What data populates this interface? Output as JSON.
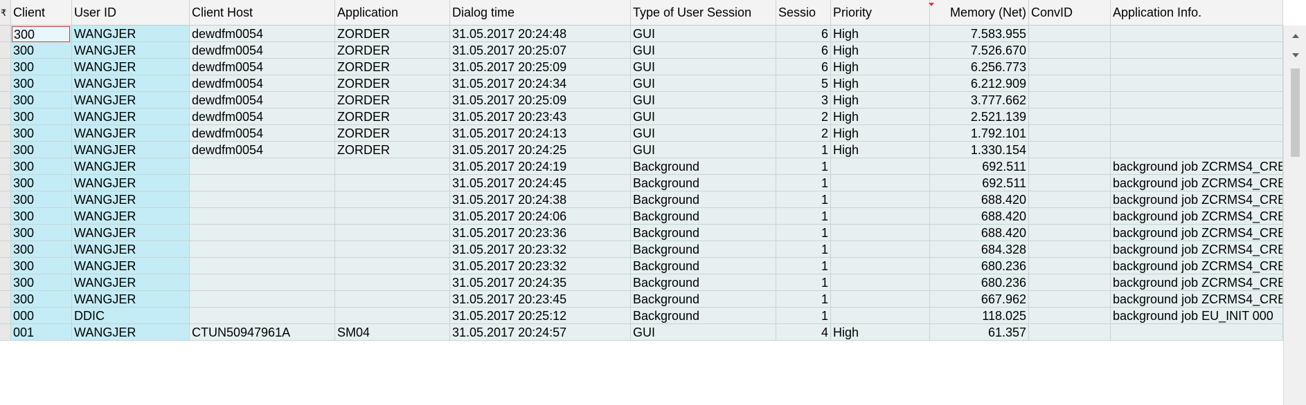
{
  "header": {
    "marker": "₹",
    "columns": [
      "Client",
      "User ID",
      "Client Host",
      "Application",
      "Dialog time",
      "Type of User Session",
      "Sessio",
      "Priority",
      "Memory (Net)",
      "ConvID",
      "Application Info."
    ]
  },
  "rows": [
    [
      "300",
      "WANGJER",
      "dewdfm0054",
      "ZORDER",
      "31.05.2017 20:24:48",
      "GUI",
      "6",
      "High",
      "7.583.955",
      "",
      ""
    ],
    [
      "300",
      "WANGJER",
      "dewdfm0054",
      "ZORDER",
      "31.05.2017 20:25:07",
      "GUI",
      "6",
      "High",
      "7.526.670",
      "",
      ""
    ],
    [
      "300",
      "WANGJER",
      "dewdfm0054",
      "ZORDER",
      "31.05.2017 20:25:09",
      "GUI",
      "6",
      "High",
      "6.256.773",
      "",
      ""
    ],
    [
      "300",
      "WANGJER",
      "dewdfm0054",
      "ZORDER",
      "31.05.2017 20:24:34",
      "GUI",
      "5",
      "High",
      "6.212.909",
      "",
      ""
    ],
    [
      "300",
      "WANGJER",
      "dewdfm0054",
      "ZORDER",
      "31.05.2017 20:25:09",
      "GUI",
      "3",
      "High",
      "3.777.662",
      "",
      ""
    ],
    [
      "300",
      "WANGJER",
      "dewdfm0054",
      "ZORDER",
      "31.05.2017 20:23:43",
      "GUI",
      "2",
      "High",
      "2.521.139",
      "",
      ""
    ],
    [
      "300",
      "WANGJER",
      "dewdfm0054",
      "ZORDER",
      "31.05.2017 20:24:13",
      "GUI",
      "2",
      "High",
      "1.792.101",
      "",
      ""
    ],
    [
      "300",
      "WANGJER",
      "dewdfm0054",
      "ZORDER",
      "31.05.2017 20:24:25",
      "GUI",
      "1",
      "High",
      "1.330.154",
      "",
      ""
    ],
    [
      "300",
      "WANGJER",
      "",
      "",
      "31.05.2017 20:24:19",
      "Background",
      "1",
      "",
      "692.511",
      "",
      "background job ZCRMS4_CRE"
    ],
    [
      "300",
      "WANGJER",
      "",
      "",
      "31.05.2017 20:24:45",
      "Background",
      "1",
      "",
      "692.511",
      "",
      "background job ZCRMS4_CRE"
    ],
    [
      "300",
      "WANGJER",
      "",
      "",
      "31.05.2017 20:24:38",
      "Background",
      "1",
      "",
      "688.420",
      "",
      "background job ZCRMS4_CRE"
    ],
    [
      "300",
      "WANGJER",
      "",
      "",
      "31.05.2017 20:24:06",
      "Background",
      "1",
      "",
      "688.420",
      "",
      "background job ZCRMS4_CRE"
    ],
    [
      "300",
      "WANGJER",
      "",
      "",
      "31.05.2017 20:23:36",
      "Background",
      "1",
      "",
      "688.420",
      "",
      "background job ZCRMS4_CRE"
    ],
    [
      "300",
      "WANGJER",
      "",
      "",
      "31.05.2017 20:23:32",
      "Background",
      "1",
      "",
      "684.328",
      "",
      "background job ZCRMS4_CRE"
    ],
    [
      "300",
      "WANGJER",
      "",
      "",
      "31.05.2017 20:23:32",
      "Background",
      "1",
      "",
      "680.236",
      "",
      "background job ZCRMS4_CRE"
    ],
    [
      "300",
      "WANGJER",
      "",
      "",
      "31.05.2017 20:24:35",
      "Background",
      "1",
      "",
      "680.236",
      "",
      "background job ZCRMS4_CRE"
    ],
    [
      "300",
      "WANGJER",
      "",
      "",
      "31.05.2017 20:23:45",
      "Background",
      "1",
      "",
      "667.962",
      "",
      "background job ZCRMS4_CRE"
    ],
    [
      "000",
      "DDIC",
      "",
      "",
      "31.05.2017 20:25:12",
      "Background",
      "1",
      "",
      "118.025",
      "",
      "background job EU_INIT 000"
    ],
    [
      "001",
      "WANGJER",
      "CTUN50947961A",
      "SM04",
      "31.05.2017 20:24:57",
      "GUI",
      "4",
      "High",
      "61.357",
      "",
      ""
    ]
  ],
  "colors": {
    "key_column": "#c4ecf6",
    "row_bg": "#e6f0f0",
    "focus_border": "#d23b3b"
  }
}
